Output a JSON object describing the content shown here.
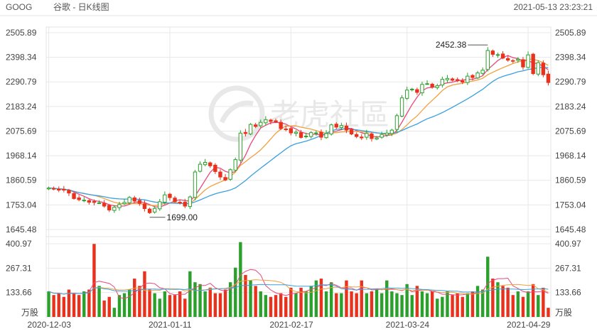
{
  "header": {
    "symbol": "GOOG",
    "title": "谷歌 - 日K线图",
    "timestamp": "2021-05-13 23:23:21"
  },
  "watermark": "老虎社區",
  "colors": {
    "up": "#2ca02c",
    "down": "#e8321d",
    "ma5": "#e8497a",
    "ma10": "#f0a040",
    "ma20": "#3aa0e0",
    "grid": "#e8e8e8"
  },
  "chart_data": [
    {
      "type": "candlestick",
      "title": "谷歌 - 日K线图",
      "price_ticks": [
        "2505.89",
        "2398.34",
        "2290.79",
        "2183.24",
        "2075.69",
        "1968.14",
        "1860.59",
        "1753.04",
        "1645.48"
      ],
      "ylim": [
        1645.48,
        2505.89
      ],
      "date_labels": [
        "2020-12-03",
        "2021-01-11",
        "2021-02-17",
        "2021-03-24",
        "2021-04-29"
      ],
      "annotations": [
        {
          "label": "2452.38",
          "value": 2452.38,
          "note": "high"
        },
        {
          "label": "1699.00",
          "value": 1699.0,
          "note": "low"
        }
      ],
      "close": [
        1827,
        1824,
        1818,
        1819,
        1805,
        1781,
        1776,
        1774,
        1765,
        1764,
        1762,
        1748,
        1731,
        1743,
        1755,
        1764,
        1786,
        1770,
        1760,
        1737,
        1719,
        1738,
        1767,
        1797,
        1785,
        1767,
        1762,
        1748,
        1788,
        1897,
        1931,
        1939,
        1924,
        1899,
        1875,
        1862,
        1907,
        1951,
        2067,
        2065,
        2105,
        2096,
        2114,
        2126,
        2118,
        2116,
        2087,
        2084,
        2068,
        2071,
        2048,
        2054,
        2069,
        2068,
        2049,
        2065,
        2103,
        2093,
        2100,
        2080,
        2063,
        2052,
        2046,
        2066,
        2043,
        2046,
        2061,
        2067,
        2080,
        2143,
        2221,
        2255,
        2259,
        2245,
        2280,
        2283,
        2268,
        2274,
        2302,
        2306,
        2298,
        2297,
        2290,
        2316,
        2310,
        2330,
        2342,
        2428,
        2411,
        2410,
        2395,
        2386,
        2382,
        2390,
        2356,
        2409,
        2327,
        2375,
        2322,
        2288
      ],
      "ma_series": [
        {
          "name": "MA5"
        },
        {
          "name": "MA10"
        },
        {
          "name": "MA20"
        }
      ],
      "volume_ticks": [
        "400.97",
        "267.31",
        "133.66"
      ],
      "volume_unit": "万股",
      "volume": [
        140,
        120,
        130,
        110,
        150,
        130,
        120,
        140,
        150,
        400,
        170,
        90,
        110,
        50,
        120,
        130,
        150,
        210,
        170,
        250,
        150,
        130,
        100,
        140,
        120,
        120,
        140,
        100,
        250,
        190,
        180,
        140,
        160,
        130,
        130,
        150,
        190,
        270,
        410,
        230,
        200,
        170,
        140,
        120,
        110,
        120,
        130,
        110,
        160,
        130,
        160,
        140,
        170,
        200,
        210,
        140,
        190,
        130,
        130,
        200,
        140,
        130,
        200,
        130,
        140,
        150,
        130,
        200,
        140,
        130,
        120,
        180,
        120,
        170,
        140,
        130,
        140,
        100,
        110,
        140,
        120,
        130,
        110,
        130,
        140,
        170,
        150,
        330,
        210,
        190,
        170,
        160,
        120,
        140,
        110,
        140,
        180,
        120,
        160,
        50
      ]
    }
  ]
}
